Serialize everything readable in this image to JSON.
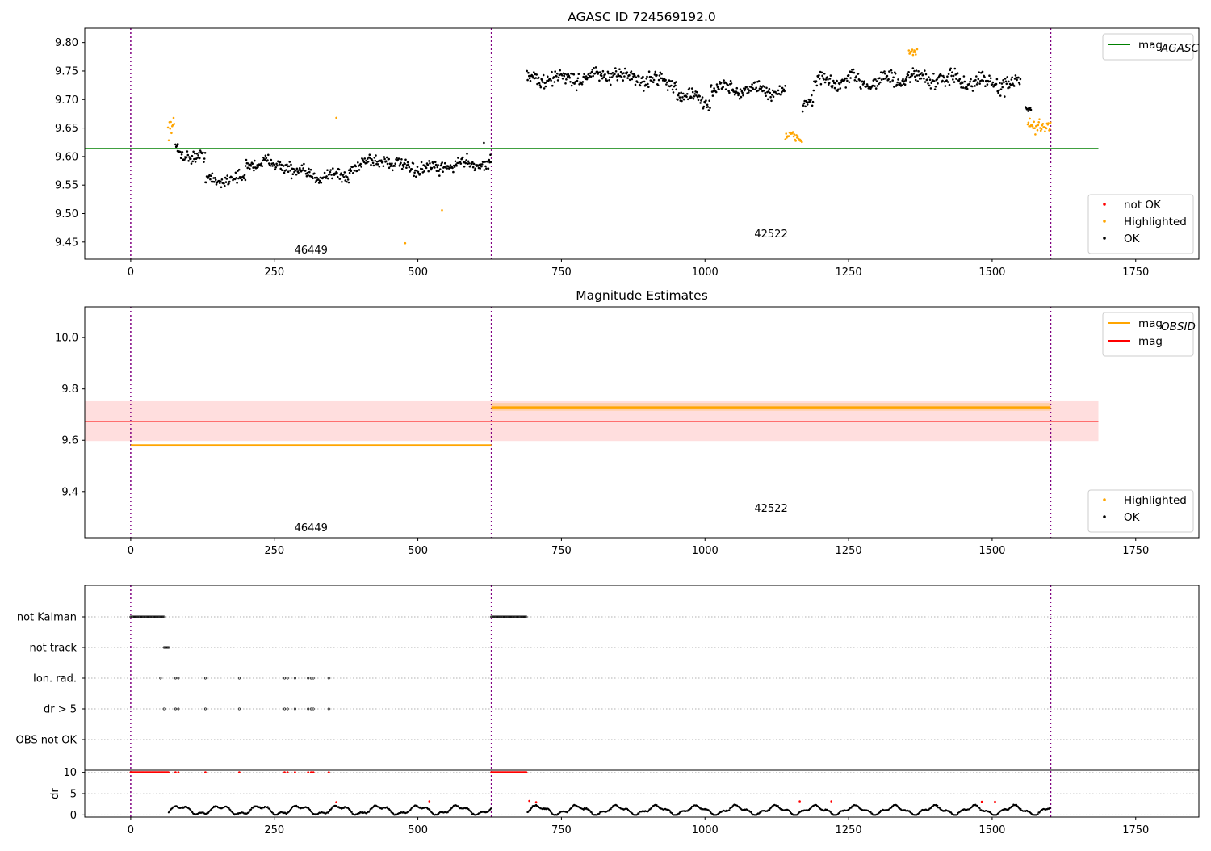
{
  "chart_data": [
    {
      "type": "scatter",
      "title": "AGASC ID 724569192.0",
      "xlabel": "",
      "ylabel": "",
      "xlim": [
        -80,
        1860
      ],
      "ylim": [
        9.42,
        9.825
      ],
      "xticks": [
        0,
        250,
        500,
        750,
        1000,
        1250,
        1500,
        1750
      ],
      "yticks": [
        9.45,
        9.5,
        9.55,
        9.6,
        9.65,
        9.7,
        9.75,
        9.8
      ],
      "obs_boundaries": [
        0,
        628,
        1602
      ],
      "obsid_labels": [
        {
          "text": "46449",
          "x": 314,
          "y": 9.43
        },
        {
          "text": "42522",
          "x": 1115,
          "y": 9.458
        }
      ],
      "lines": [
        {
          "name": "mag_AGASC",
          "color": "#008000",
          "y": 9.614,
          "x_range": [
            -80,
            1685
          ]
        }
      ],
      "series_segments": [
        {
          "name": "Highlighted",
          "color": "#ffa500",
          "x": [
            65,
            77
          ],
          "base": [
            9.64,
            9.655
          ],
          "noise": 0.012
        },
        {
          "name": "OK",
          "color": "#000000",
          "x": [
            78,
            130
          ],
          "base": [
            9.61,
            9.595
          ],
          "noise": 0.009
        },
        {
          "name": "OK",
          "color": "#000000",
          "x": [
            130,
            200
          ],
          "base": [
            9.56,
            9.56
          ],
          "noise": 0.009
        },
        {
          "name": "OK",
          "color": "#000000",
          "x": [
            200,
            280
          ],
          "base": [
            9.59,
            9.585
          ],
          "noise": 0.009
        },
        {
          "name": "OK",
          "color": "#000000",
          "x": [
            280,
            380
          ],
          "base": [
            9.57,
            9.565
          ],
          "noise": 0.009
        },
        {
          "name": "OK",
          "color": "#000000",
          "x": [
            380,
            450
          ],
          "base": [
            9.58,
            9.6
          ],
          "noise": 0.01
        },
        {
          "name": "OK",
          "color": "#000000",
          "x": [
            450,
            540
          ],
          "base": [
            9.585,
            9.575
          ],
          "noise": 0.009
        },
        {
          "name": "OK",
          "color": "#000000",
          "x": [
            540,
            628
          ],
          "base": [
            9.585,
            9.59
          ],
          "noise": 0.009
        },
        {
          "name": "OK",
          "color": "#000000",
          "x": [
            690,
            820
          ],
          "base": [
            9.735,
            9.74
          ],
          "noise": 0.011
        },
        {
          "name": "OK",
          "color": "#000000",
          "x": [
            820,
            950
          ],
          "base": [
            9.745,
            9.73
          ],
          "noise": 0.011
        },
        {
          "name": "OK",
          "color": "#000000",
          "x": [
            950,
            1010
          ],
          "base": [
            9.71,
            9.695
          ],
          "noise": 0.01
        },
        {
          "name": "OK",
          "color": "#000000",
          "x": [
            1010,
            1140
          ],
          "base": [
            9.72,
            9.715
          ],
          "noise": 0.01
        },
        {
          "name": "Highlighted",
          "color": "#ffa500",
          "x": [
            1140,
            1170
          ],
          "base": [
            9.63,
            9.635
          ],
          "noise": 0.008
        },
        {
          "name": "OK",
          "color": "#000000",
          "x": [
            1170,
            1190
          ],
          "base": [
            9.695,
            9.705
          ],
          "noise": 0.01
        },
        {
          "name": "OK",
          "color": "#000000",
          "x": [
            1190,
            1350
          ],
          "base": [
            9.73,
            9.735
          ],
          "noise": 0.012
        },
        {
          "name": "Highlighted",
          "color": "#ffa500",
          "x": [
            1355,
            1370
          ],
          "base": [
            9.78,
            9.782
          ],
          "noise": 0.005
        },
        {
          "name": "OK",
          "color": "#000000",
          "x": [
            1350,
            1550
          ],
          "base": [
            9.74,
            9.725
          ],
          "noise": 0.012
        },
        {
          "name": "OK",
          "color": "#000000",
          "x": [
            1558,
            1568
          ],
          "base": [
            9.685,
            9.685
          ],
          "noise": 0.004
        },
        {
          "name": "Highlighted",
          "color": "#ffa500",
          "x": [
            1562,
            1602
          ],
          "base": [
            9.66,
            9.645
          ],
          "noise": 0.01
        }
      ],
      "outliers": [
        {
          "name": "Highlighted",
          "color": "#ffa500",
          "x": 358,
          "y": 9.668
        },
        {
          "name": "Highlighted",
          "color": "#ffa500",
          "x": 478,
          "y": 9.448
        },
        {
          "name": "Highlighted",
          "color": "#ffa500",
          "x": 542,
          "y": 9.506
        },
        {
          "name": "OK",
          "color": "#000000",
          "x": 82,
          "y": 9.622
        },
        {
          "name": "OK",
          "color": "#000000",
          "x": 615,
          "y": 9.624
        }
      ],
      "legend_upper": {
        "placement": "top-right",
        "entries": [
          {
            "label": "mag",
            "subscript": "AGASC",
            "color": "#008000",
            "marker": "line"
          }
        ]
      },
      "legend_lower": {
        "placement": "bottom-right",
        "entries": [
          {
            "label": "not OK",
            "color": "#ff0000",
            "marker": "dot"
          },
          {
            "label": "Highlighted",
            "color": "#ffa500",
            "marker": "dot"
          },
          {
            "label": "OK",
            "color": "#000000",
            "marker": "dot"
          }
        ]
      }
    },
    {
      "type": "scatter",
      "title": "Magnitude Estimates",
      "xlabel": "",
      "ylabel": "",
      "xlim": [
        -80,
        1860
      ],
      "ylim": [
        9.22,
        10.12
      ],
      "xticks": [
        0,
        250,
        500,
        750,
        1000,
        1250,
        1500,
        1750
      ],
      "yticks": [
        9.4,
        9.6,
        9.8,
        10.0
      ],
      "obs_boundaries": [
        0,
        628,
        1602
      ],
      "obsid_labels": [
        {
          "text": "46449",
          "x": 314,
          "y": 9.245
        },
        {
          "text": "42522",
          "x": 1115,
          "y": 9.32
        }
      ],
      "bands": [
        {
          "color": "#ffcccc",
          "opacity": 0.65,
          "y_range": [
            9.597,
            9.752
          ],
          "x_range": [
            -80,
            1685
          ]
        },
        {
          "color": "#ffa500",
          "opacity": 0.25,
          "y_range": [
            9.575,
            9.585
          ],
          "x_range": [
            0,
            628
          ]
        },
        {
          "color": "#ffa500",
          "opacity": 0.25,
          "y_range": [
            9.715,
            9.745
          ],
          "x_range": [
            628,
            1602
          ]
        }
      ],
      "lines": [
        {
          "name": "mag_OBSID",
          "color": "#ffa500",
          "y": 9.58,
          "x_range": [
            0,
            628
          ],
          "width": 2.5
        },
        {
          "name": "mag_OBSID",
          "color": "#ffa500",
          "y": 9.728,
          "x_range": [
            628,
            1602
          ],
          "width": 2.5
        },
        {
          "name": "mag",
          "color": "#ff0000",
          "y": 9.674,
          "x_range": [
            -80,
            1685
          ],
          "width": 1.5
        }
      ],
      "legend_upper": {
        "placement": "top-right",
        "entries": [
          {
            "label": "mag",
            "subscript": "OBSID",
            "color": "#ffa500",
            "marker": "line"
          },
          {
            "label": "mag",
            "subscript": "",
            "color": "#ff0000",
            "marker": "line"
          }
        ]
      },
      "legend_lower": {
        "placement": "bottom-right",
        "entries": [
          {
            "label": "Highlighted",
            "color": "#ffa500",
            "marker": "dot"
          },
          {
            "label": "OK",
            "color": "#000000",
            "marker": "dot"
          }
        ]
      }
    },
    {
      "type": "scatter",
      "title": "",
      "xlabel": "",
      "ylabel": "",
      "xlim": [
        -80,
        1860
      ],
      "xticks": [
        0,
        250,
        500,
        750,
        1000,
        1250,
        1500,
        1750
      ],
      "obs_boundaries": [
        0,
        628,
        1602
      ],
      "flag_rows": [
        {
          "label": "not Kalman",
          "ranges": [
            [
              0,
              58
            ],
            [
              628,
              690
            ]
          ],
          "points": []
        },
        {
          "label": "not track",
          "ranges": [
            [
              58,
              66
            ]
          ],
          "points": []
        },
        {
          "label": "Ion. rad.",
          "ranges": [],
          "points": [
            52,
            78,
            83,
            130,
            189,
            268,
            273,
            286,
            309,
            314,
            318,
            345
          ]
        },
        {
          "label": "dr > 5",
          "ranges": [],
          "points": [
            58,
            78,
            83,
            130,
            189,
            268,
            273,
            286,
            309,
            314,
            318,
            345
          ]
        },
        {
          "label": "OBS not OK",
          "ranges": [],
          "points": []
        }
      ],
      "dr_panel": {
        "ylabel": "dr",
        "ylim": [
          -0.5,
          10.5
        ],
        "yticks": [
          0,
          5,
          10
        ],
        "ten_ranges": [
          [
            0,
            66
          ],
          [
            628,
            690
          ]
        ],
        "ten_points": [
          78,
          83,
          130,
          189,
          268,
          273,
          286,
          309,
          314,
          318,
          345
        ],
        "red_points": [
          [
            358,
            3
          ],
          [
            520,
            3.2
          ],
          [
            694,
            3.3
          ],
          [
            706,
            3.0
          ],
          [
            1165,
            3.2
          ],
          [
            1220,
            3.2
          ],
          [
            1482,
            3.1
          ],
          [
            1505,
            3.1
          ]
        ],
        "gaps": [
          [
            628,
            690
          ],
          [
            1602,
            1860
          ]
        ]
      }
    }
  ]
}
